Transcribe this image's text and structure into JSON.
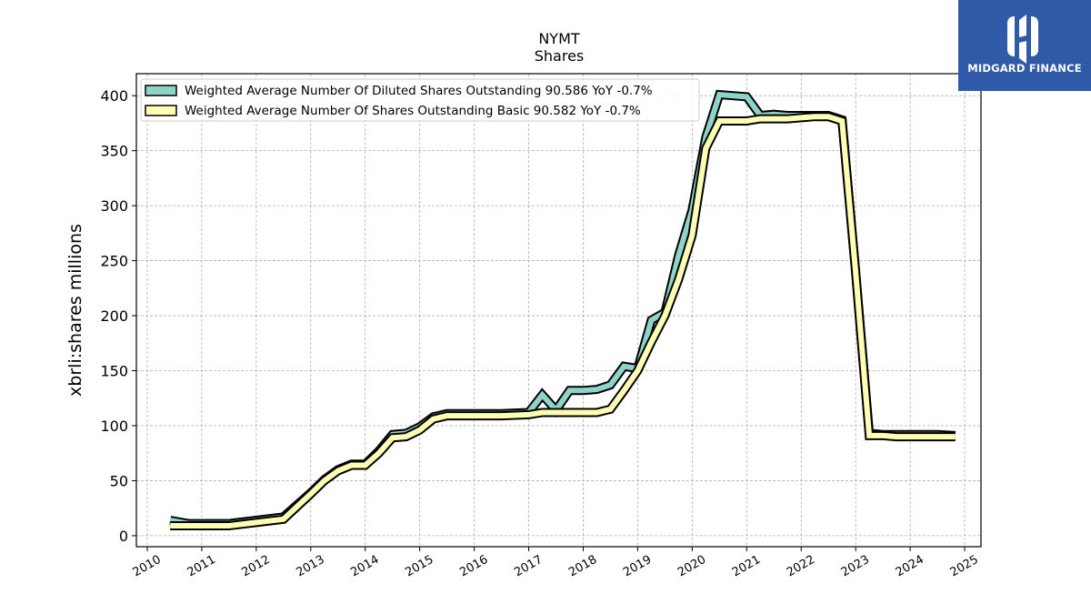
{
  "logo": {
    "text": "MIDGARD FINANCE",
    "color": "#2e5aa8"
  },
  "chart_data": {
    "type": "line",
    "title": "NYMT",
    "subtitle": "Shares",
    "xlabel": "",
    "ylabel": "xbrli:shares millions",
    "xlim": [
      2009.8,
      2025.3
    ],
    "ylim": [
      -10,
      420
    ],
    "grid": true,
    "legend_position": "top-left",
    "x_ticks": [
      2010,
      2011,
      2012,
      2013,
      2014,
      2015,
      2016,
      2017,
      2018,
      2019,
      2020,
      2021,
      2022,
      2023,
      2024,
      2025
    ],
    "y_ticks": [
      0,
      50,
      100,
      150,
      200,
      250,
      300,
      350,
      400
    ],
    "series": [
      {
        "name": "Weighted Average Number Of Diluted Shares Outstanding",
        "legend_label": "Weighted Average Number Of Diluted Shares Outstanding  90.586 YoY -0.7%",
        "color": "#8dd3c7",
        "x": [
          2010.42,
          2010.75,
          2011.0,
          2011.5,
          2012.0,
          2012.5,
          2013.0,
          2013.25,
          2013.5,
          2013.75,
          2014.0,
          2014.25,
          2014.5,
          2014.75,
          2015.0,
          2015.25,
          2015.5,
          2016.0,
          2016.5,
          2017.0,
          2017.25,
          2017.5,
          2017.75,
          2018.0,
          2018.25,
          2018.5,
          2018.75,
          2019.0,
          2019.25,
          2019.5,
          2019.75,
          2020.0,
          2020.25,
          2020.5,
          2020.75,
          2021.0,
          2021.25,
          2021.5,
          2021.75,
          2022.0,
          2022.25,
          2022.5,
          2022.75,
          2023.0,
          2023.25,
          2023.5,
          2023.75,
          2024.0,
          2024.25,
          2024.5,
          2024.83
        ],
        "y": [
          14,
          11,
          11,
          11,
          14,
          17,
          39,
          51,
          60,
          65,
          65,
          77,
          92,
          93,
          99,
          108,
          111,
          111,
          111,
          112,
          128,
          114,
          132,
          132,
          133,
          137,
          154,
          152,
          196,
          203,
          255,
          296,
          362,
          401,
          400,
          399,
          382,
          383,
          382,
          382,
          382,
          382,
          378,
          240,
          93,
          92,
          92,
          92,
          92,
          92,
          91
        ]
      },
      {
        "name": "Weighted Average Number Of Shares Outstanding Basic",
        "legend_label": "Weighted Average Number Of Shares Outstanding Basic  90.582 YoY -0.7%",
        "color": "#ffffb3",
        "x": [
          2010.42,
          2010.75,
          2011.0,
          2011.5,
          2012.0,
          2012.5,
          2013.0,
          2013.25,
          2013.5,
          2013.75,
          2014.0,
          2014.25,
          2014.5,
          2014.75,
          2015.0,
          2015.25,
          2015.5,
          2016.0,
          2016.5,
          2017.0,
          2017.25,
          2017.5,
          2017.75,
          2018.0,
          2018.25,
          2018.5,
          2018.75,
          2019.0,
          2019.25,
          2019.5,
          2019.75,
          2020.0,
          2020.25,
          2020.5,
          2020.75,
          2021.0,
          2021.25,
          2021.5,
          2021.75,
          2022.0,
          2022.25,
          2022.5,
          2022.75,
          2023.0,
          2023.25,
          2023.5,
          2023.75,
          2024.0,
          2024.25,
          2024.5,
          2024.83
        ],
        "y": [
          9,
          9,
          9,
          9,
          12,
          15,
          38,
          50,
          59,
          64,
          64,
          75,
          89,
          90,
          96,
          106,
          109,
          109,
          109,
          110,
          112,
          112,
          112,
          112,
          112,
          115,
          132,
          150,
          176,
          200,
          233,
          273,
          352,
          377,
          377,
          377,
          379,
          379,
          379,
          380,
          381,
          381,
          377,
          240,
          91,
          91,
          90,
          90,
          90,
          90,
          90
        ]
      }
    ]
  }
}
